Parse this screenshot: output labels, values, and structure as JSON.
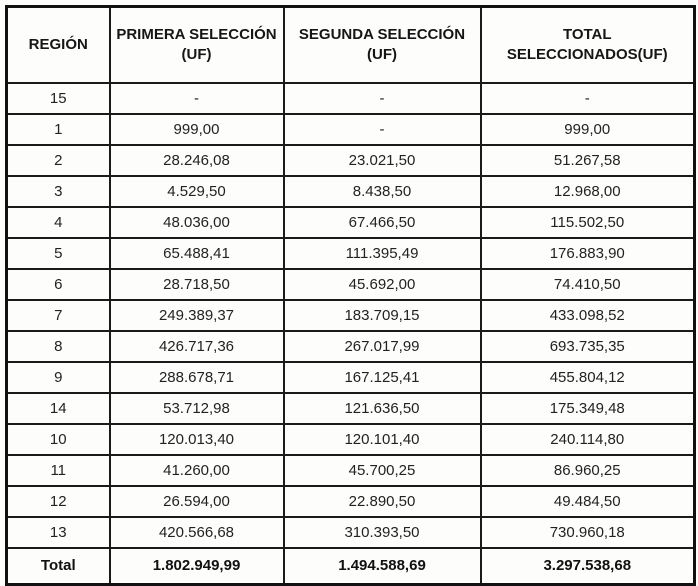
{
  "table": {
    "columns": [
      "REGIÓN",
      "PRIMERA SELECCIÓN (UF)",
      "SEGUNDA SELECCIÓN (UF)",
      "TOTAL SELECCIONADOS(UF)"
    ],
    "rows": [
      {
        "region": "15",
        "primera": "-",
        "segunda": "-",
        "total": "-"
      },
      {
        "region": "1",
        "primera": "999,00",
        "segunda": "-",
        "total": "999,00"
      },
      {
        "region": "2",
        "primera": "28.246,08",
        "segunda": "23.021,50",
        "total": "51.267,58"
      },
      {
        "region": "3",
        "primera": "4.529,50",
        "segunda": "8.438,50",
        "total": "12.968,00"
      },
      {
        "region": "4",
        "primera": "48.036,00",
        "segunda": "67.466,50",
        "total": "115.502,50"
      },
      {
        "region": "5",
        "primera": "65.488,41",
        "segunda": "111.395,49",
        "total": "176.883,90"
      },
      {
        "region": "6",
        "primera": "28.718,50",
        "segunda": "45.692,00",
        "total": "74.410,50"
      },
      {
        "region": "7",
        "primera": "249.389,37",
        "segunda": "183.709,15",
        "total": "433.098,52"
      },
      {
        "region": "8",
        "primera": "426.717,36",
        "segunda": "267.017,99",
        "total": "693.735,35"
      },
      {
        "region": "9",
        "primera": "288.678,71",
        "segunda": "167.125,41",
        "total": "455.804,12"
      },
      {
        "region": "14",
        "primera": "53.712,98",
        "segunda": "121.636,50",
        "total": "175.349,48"
      },
      {
        "region": "10",
        "primera": "120.013,40",
        "segunda": "120.101,40",
        "total": "240.114,80"
      },
      {
        "region": "11",
        "primera": "41.260,00",
        "segunda": "45.700,25",
        "total": "86.960,25"
      },
      {
        "region": "12",
        "primera": "26.594,00",
        "segunda": "22.890,50",
        "total": "49.484,50"
      },
      {
        "region": "13",
        "primera": "420.566,68",
        "segunda": "310.393,50",
        "total": "730.960,18"
      }
    ],
    "total_row": {
      "label": "Total",
      "primera": "1.802.949,99",
      "segunda": "1.494.588,69",
      "total": "3.297.538,68"
    }
  }
}
